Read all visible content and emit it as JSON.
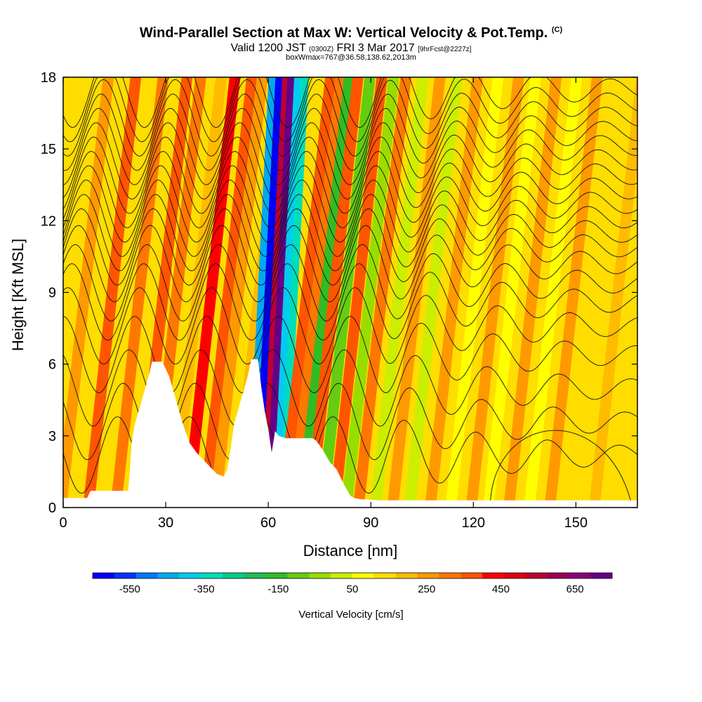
{
  "title": {
    "main": "Wind-Parallel Section at Max W: Vertical Velocity & Pot.Temp.",
    "copyright": "(C)",
    "valid_prefix": "Valid 1200 JST",
    "valid_utc": "(0300Z)",
    "valid_date": "FRI 3 Mar 2017",
    "forecast": "[9hrFcst@2227z]",
    "box_info": "boxWmax=767@36.58,138.62,2013m"
  },
  "chart_data": {
    "type": "heatmap",
    "xlabel": "Distance [nm]",
    "ylabel": "Height [Kft MSL]",
    "xlim": [
      0,
      168
    ],
    "ylim": [
      0,
      18
    ],
    "x_ticks": [
      0,
      30,
      60,
      90,
      120,
      150
    ],
    "y_ticks": [
      0,
      3,
      6,
      9,
      12,
      15,
      18
    ],
    "colorbar": {
      "label": "Vertical Velocity [cm/s]",
      "tick_values": [
        -550,
        -350,
        -150,
        50,
        250,
        450,
        650
      ],
      "colors": [
        "#0000ff",
        "#0033ff",
        "#0077ff",
        "#00aaee",
        "#00ccee",
        "#00ddbb",
        "#00cc88",
        "#22bb55",
        "#33bb22",
        "#66cc11",
        "#99dd00",
        "#ccee00",
        "#ffff00",
        "#ffdd00",
        "#ffbb00",
        "#ff9900",
        "#ff7700",
        "#ff5500",
        "#ff0000",
        "#dd0011",
        "#bb0033",
        "#990055",
        "#880077",
        "#660088"
      ]
    },
    "bands": [
      {
        "x": 4,
        "w": 5
      },
      {
        "x": 12,
        "w": 8
      },
      {
        "x": 20,
        "w": 6
      },
      {
        "x": 27,
        "w": 8
      },
      {
        "x": 31,
        "w": 6
      },
      {
        "x": 37,
        "w": 2
      },
      {
        "x": 41,
        "w": 10
      },
      {
        "x": 46,
        "w": 9
      },
      {
        "x": 49,
        "w": 5
      },
      {
        "x": 55,
        "w": 3
      },
      {
        "x": 57,
        "w": -20
      },
      {
        "x": 59,
        "w": -30
      },
      {
        "x": 61,
        "w": 14
      },
      {
        "x": 62.5,
        "w": 26
      },
      {
        "x": 64.5,
        "w": -18
      },
      {
        "x": 66.5,
        "w": -16
      },
      {
        "x": 69,
        "w": 8
      },
      {
        "x": 72,
        "w": 6
      },
      {
        "x": 74.5,
        "w": -10
      },
      {
        "x": 77,
        "w": 9
      },
      {
        "x": 80.5,
        "w": -8
      },
      {
        "x": 84,
        "w": 8
      },
      {
        "x": 87.5,
        "w": -5
      },
      {
        "x": 91,
        "w": 6
      },
      {
        "x": 96,
        "w": -3
      },
      {
        "x": 101,
        "w": 5
      },
      {
        "x": 106,
        "w": -3
      },
      {
        "x": 112,
        "w": 4
      },
      {
        "x": 118,
        "w": -2
      },
      {
        "x": 124,
        "w": 4
      },
      {
        "x": 129,
        "w": -2
      },
      {
        "x": 135,
        "w": 5
      },
      {
        "x": 141,
        "w": -1
      },
      {
        "x": 147,
        "w": 4
      },
      {
        "x": 154,
        "w": 1
      },
      {
        "x": 160,
        "w": 3
      }
    ],
    "terrain": [
      [
        0,
        0.4
      ],
      [
        7,
        0.4
      ],
      [
        8,
        0.7
      ],
      [
        19,
        0.7
      ],
      [
        19.5,
        1.5
      ],
      [
        20,
        2.7
      ],
      [
        21,
        3.5
      ],
      [
        23,
        4.5
      ],
      [
        25,
        5.5
      ],
      [
        26,
        6.1
      ],
      [
        29,
        6.1
      ],
      [
        31,
        5.5
      ],
      [
        33,
        4.5
      ],
      [
        35,
        3.5
      ],
      [
        37,
        2.7
      ],
      [
        39,
        2.3
      ],
      [
        41,
        2.0
      ],
      [
        43,
        1.7
      ],
      [
        45,
        1.4
      ],
      [
        47,
        1.3
      ],
      [
        48,
        1.6
      ],
      [
        49,
        2.5
      ],
      [
        50,
        3.5
      ],
      [
        52,
        4.5
      ],
      [
        54,
        5.5
      ],
      [
        55,
        6.2
      ],
      [
        57,
        6.2
      ],
      [
        58,
        5.0
      ],
      [
        59,
        4.0
      ],
      [
        60,
        3.3
      ],
      [
        61,
        2.3
      ],
      [
        62,
        3.2
      ],
      [
        63,
        3.0
      ],
      [
        65,
        2.9
      ],
      [
        70,
        2.9
      ],
      [
        73,
        2.9
      ],
      [
        74,
        2.8
      ],
      [
        76,
        2.4
      ],
      [
        78,
        1.9
      ],
      [
        80,
        1.6
      ],
      [
        82,
        1.0
      ],
      [
        84,
        0.5
      ],
      [
        85,
        0.4
      ],
      [
        87,
        0.35
      ],
      [
        93,
        0.3
      ],
      [
        168,
        0.3
      ]
    ],
    "isentrope_heights": [
      2.2,
      3.6,
      5.0,
      6.4,
      7.6,
      8.6,
      9.4,
      10.2,
      10.9,
      11.5,
      12.1,
      12.7,
      13.3,
      13.9,
      14.5,
      15.1,
      15.7,
      16.3,
      16.9,
      17.5
    ],
    "isentrope_wave_amplitude_kft": 1.6,
    "closed_contour_x": [
      125,
      166
    ]
  }
}
